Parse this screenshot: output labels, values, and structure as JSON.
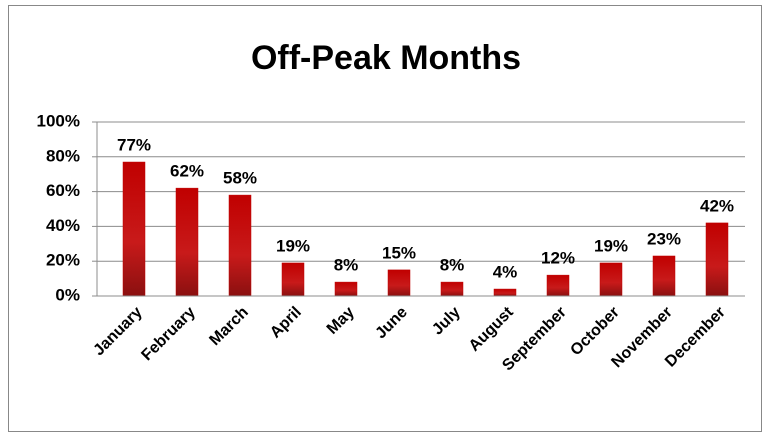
{
  "chart_data": {
    "type": "bar",
    "title": "Off-Peak Months",
    "categories": [
      "January",
      "February",
      "March",
      "April",
      "May",
      "June",
      "July",
      "August",
      "September",
      "October",
      "November",
      "December"
    ],
    "values": [
      77,
      62,
      58,
      19,
      8,
      15,
      8,
      4,
      12,
      19,
      23,
      42
    ],
    "value_labels": [
      "77%",
      "62%",
      "58%",
      "19%",
      "8%",
      "15%",
      "8%",
      "4%",
      "12%",
      "19%",
      "23%",
      "42%"
    ],
    "color": "#c00000",
    "ylim": [
      0,
      100
    ],
    "yticks": [
      {
        "value": 0,
        "label": "0%"
      },
      {
        "value": 20,
        "label": "20%"
      },
      {
        "value": 40,
        "label": "40%"
      },
      {
        "value": 60,
        "label": "60%"
      },
      {
        "value": 80,
        "label": "80%"
      },
      {
        "value": 100,
        "label": "100%"
      }
    ],
    "grid": true
  }
}
